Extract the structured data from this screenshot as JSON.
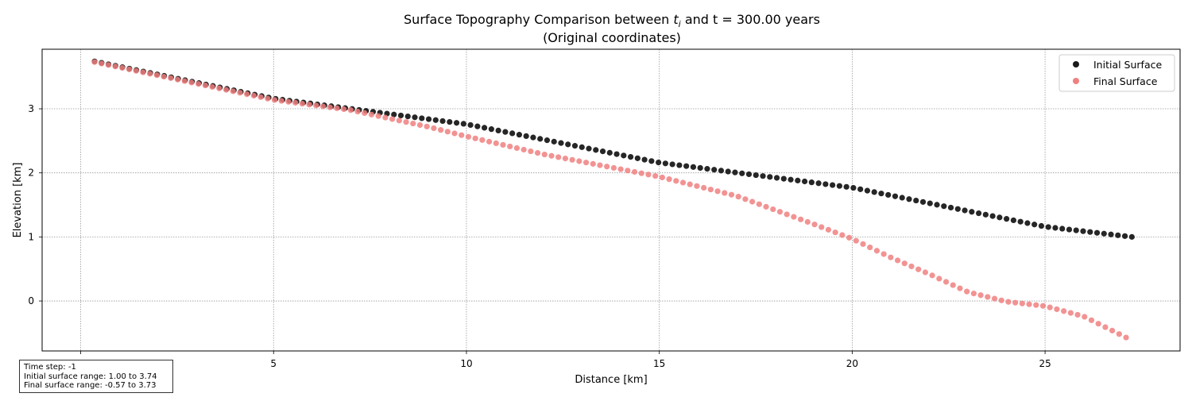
{
  "chart_data": {
    "type": "scatter",
    "title": {
      "line1_prefix": "Surface Topography Comparison between ",
      "line1_var": "t",
      "line1_sub": "i",
      "line1_suffix": " and t = 300.00 years",
      "line2": "(Original coordinates)"
    },
    "xlabel": "Distance [km]",
    "ylabel": "Elevation [km]",
    "xlim": [
      -1,
      28.5
    ],
    "ylim": [
      -0.78,
      3.93
    ],
    "xticks": [
      0,
      5,
      10,
      15,
      20,
      25
    ],
    "xtick_labels": [
      "0",
      "5",
      "10",
      "15",
      "20",
      "25"
    ],
    "yticks": [
      0,
      1,
      2,
      3
    ],
    "ytick_labels": [
      "0",
      "1",
      "2",
      "3"
    ],
    "grid": true,
    "legend_position": "top-right",
    "series": [
      {
        "name": "Initial Surface",
        "color": "#1a1a1a",
        "x_start": 0.36,
        "x_end": 27.25,
        "n_points": 150,
        "curve_x": [
          0.36,
          5.0,
          7.0,
          9.0,
          10.0,
          15.0,
          20.0,
          25.0,
          27.25
        ],
        "curve_y": [
          3.74,
          3.16,
          3.0,
          2.84,
          2.76,
          2.16,
          1.77,
          1.16,
          1.0
        ]
      },
      {
        "name": "Final Surface",
        "color": "#f08080",
        "x_start": 0.36,
        "x_end": 27.1,
        "n_points": 150,
        "curve_x": [
          0.36,
          5.0,
          7.0,
          9.0,
          10.0,
          12.0,
          15.0,
          17.0,
          18.0,
          19.0,
          20.0,
          21.0,
          22.0,
          23.0,
          24.0,
          25.0,
          26.0,
          27.1
        ],
        "curve_y": [
          3.73,
          3.14,
          2.98,
          2.72,
          2.57,
          2.29,
          1.94,
          1.64,
          1.42,
          1.2,
          0.97,
          0.68,
          0.42,
          0.14,
          -0.01,
          -0.08,
          -0.24,
          -0.57
        ]
      }
    ]
  },
  "info_box": {
    "line1": "Time step: -1",
    "line2": "Initial surface range: 1.00 to 3.74",
    "line3": "Final surface range: -0.57 to 3.73"
  }
}
